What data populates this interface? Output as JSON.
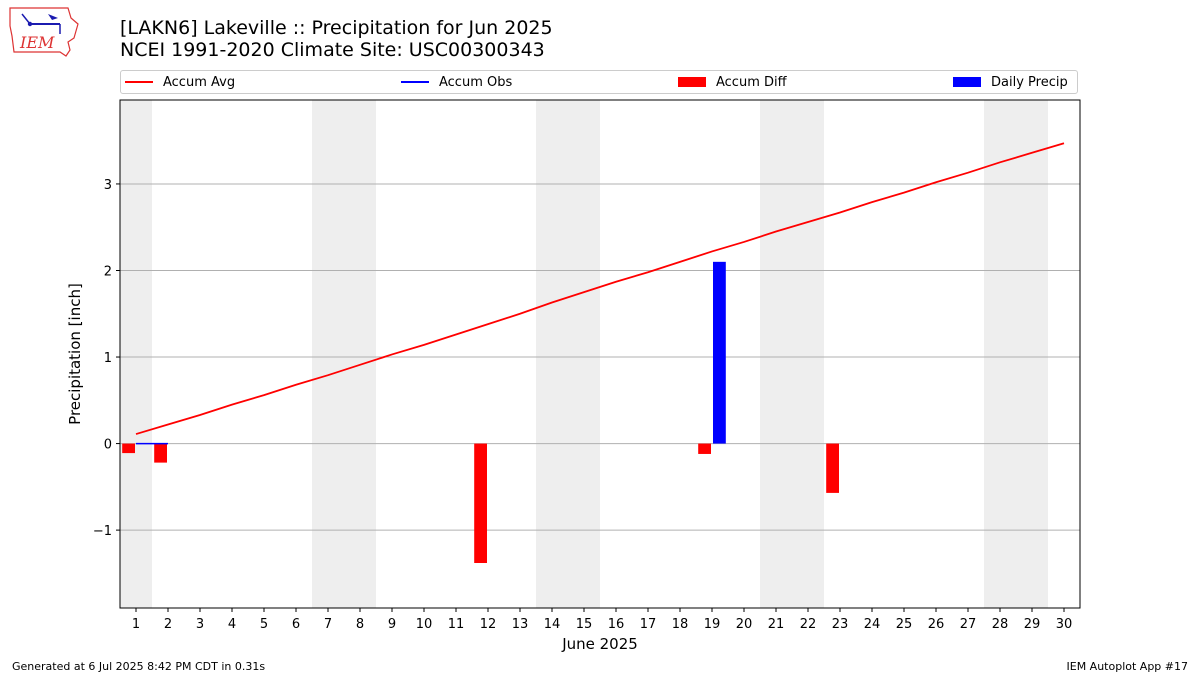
{
  "header": {
    "title_line1": "[LAKN6] Lakeville :: Precipitation for Jun 2025",
    "title_line2": "NCEI 1991-2020 Climate Site: USC00300343",
    "logo_text": "IEM"
  },
  "legend": [
    {
      "label": "Accum Avg",
      "color": "#ff0000",
      "kind": "line"
    },
    {
      "label": "Accum Obs",
      "color": "#0000ff",
      "kind": "line"
    },
    {
      "label": "Accum Diff",
      "color": "#ff0000",
      "kind": "box"
    },
    {
      "label": "Daily Precip",
      "color": "#0000ff",
      "kind": "box"
    }
  ],
  "footer": {
    "generated": "Generated at 6 Jul 2025 8:42 PM CDT in 0.31s",
    "app": "IEM Autoplot App #17"
  },
  "chart_data": {
    "type": "bar",
    "xlabel": "June 2025",
    "ylabel": "Precipitation [inch]",
    "xlim": [
      0.5,
      30.5
    ],
    "ylim": [
      -1.9,
      3.97
    ],
    "yticks": [
      -1,
      0,
      1,
      2,
      3
    ],
    "ytick_labels": [
      "−1",
      "0",
      "1",
      "2",
      "3"
    ],
    "days": [
      1,
      2,
      3,
      4,
      5,
      6,
      7,
      8,
      9,
      10,
      11,
      12,
      13,
      14,
      15,
      16,
      17,
      18,
      19,
      20,
      21,
      22,
      23,
      24,
      25,
      26,
      27,
      28,
      29,
      30
    ],
    "weekend_days": [
      1,
      7,
      8,
      14,
      15,
      21,
      22,
      28,
      29
    ],
    "grid": true,
    "legend_position": "top",
    "series": [
      {
        "name": "Accum Avg",
        "kind": "line",
        "color": "#ff0000",
        "values": [
          0.11,
          0.22,
          0.33,
          0.45,
          0.56,
          0.68,
          0.79,
          0.91,
          1.03,
          1.14,
          1.26,
          1.38,
          1.5,
          1.63,
          1.75,
          1.87,
          1.98,
          2.1,
          2.22,
          2.33,
          2.45,
          2.56,
          2.67,
          2.79,
          2.9,
          3.02,
          3.13,
          3.25,
          3.36,
          3.47
        ]
      },
      {
        "name": "Accum Obs",
        "kind": "line",
        "color": "#0000ff",
        "x": [
          1,
          2
        ],
        "values": [
          0.0,
          0.0
        ]
      },
      {
        "name": "Accum Diff",
        "kind": "bar",
        "color": "#ff0000",
        "values": [
          -0.11,
          -0.22,
          0,
          0,
          0,
          0,
          0,
          0,
          0,
          0,
          0,
          -1.38,
          0,
          0,
          0,
          0,
          0,
          0,
          -0.12,
          0,
          0,
          0,
          -0.57,
          0,
          0,
          0,
          0,
          0,
          0,
          0
        ]
      },
      {
        "name": "Daily Precip",
        "kind": "bar",
        "color": "#0000ff",
        "values": [
          0,
          0,
          0,
          0,
          0,
          0,
          0,
          0,
          0,
          0,
          0,
          0,
          0,
          0,
          0,
          0,
          0,
          0,
          2.1,
          0,
          0,
          0,
          0,
          0,
          0,
          0,
          0,
          0,
          0,
          0
        ]
      }
    ]
  }
}
